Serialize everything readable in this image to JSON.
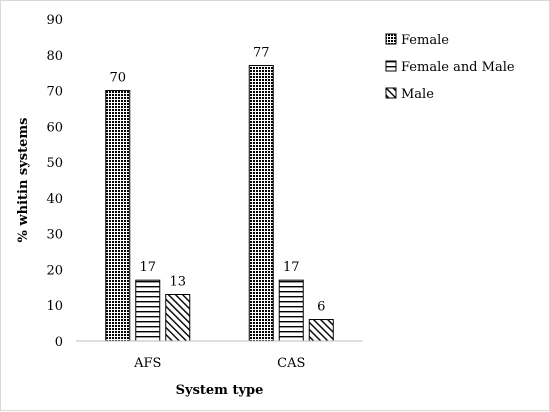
{
  "chart_data": {
    "type": "bar",
    "categories": [
      "AFS",
      "CAS"
    ],
    "series": [
      {
        "name": "Female",
        "values": [
          70,
          77
        ],
        "pattern": "dots"
      },
      {
        "name": "Female and Male",
        "values": [
          17,
          17
        ],
        "pattern": "hlines"
      },
      {
        "name": "Male",
        "values": [
          13,
          6
        ],
        "pattern": "diag"
      }
    ],
    "xlabel": "System type",
    "ylabel": "% whitin systems",
    "ylim": [
      0,
      90
    ],
    "yticks": [
      0,
      10,
      20,
      30,
      40,
      50,
      60,
      70,
      80,
      90
    ],
    "data_labels": true,
    "grid": false,
    "legend_position": "right"
  }
}
